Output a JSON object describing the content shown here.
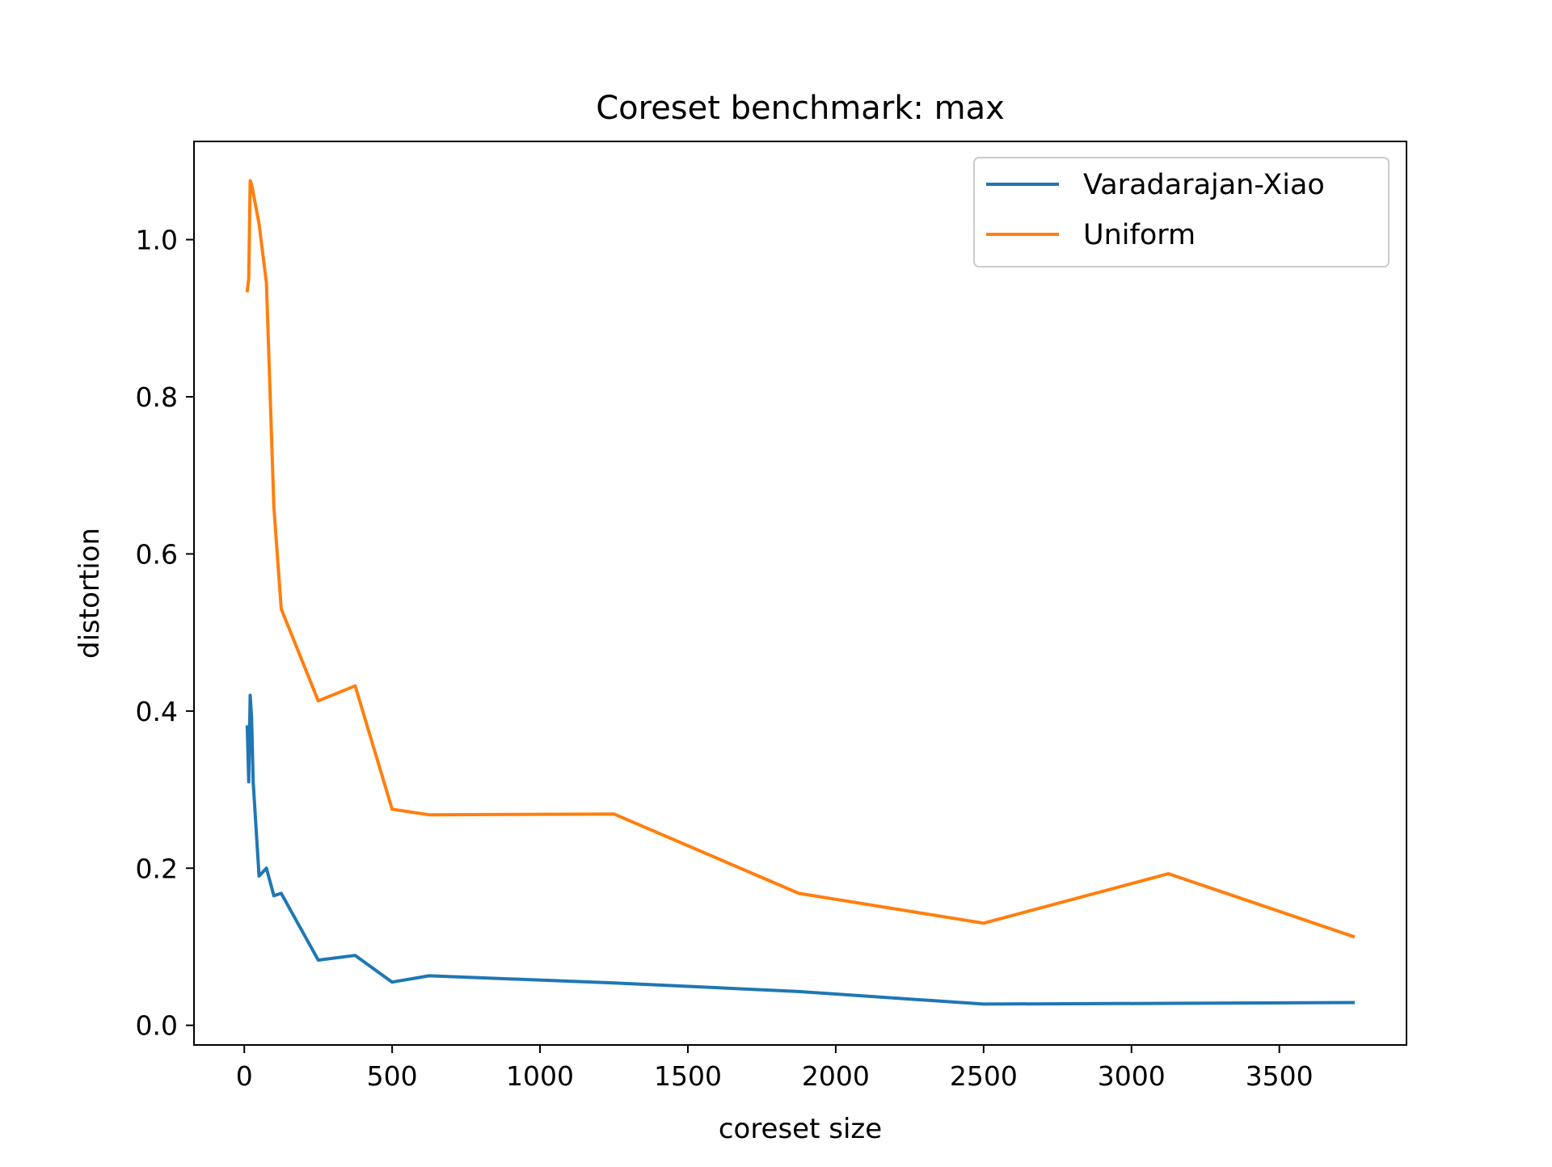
{
  "chart_data": {
    "type": "line",
    "title": "Coreset benchmark: max",
    "xlabel": "coreset size",
    "ylabel": "distortion",
    "xlim": [
      -170,
      3930
    ],
    "ylim": [
      -0.025,
      1.125
    ],
    "xticks": [
      0,
      500,
      1000,
      1500,
      2000,
      2500,
      3000,
      3500
    ],
    "xtick_labels": [
      "0",
      "500",
      "1000",
      "1500",
      "2000",
      "2500",
      "3000",
      "3500"
    ],
    "yticks": [
      0.0,
      0.2,
      0.4,
      0.6,
      0.8,
      1.0
    ],
    "ytick_labels": [
      "0.0",
      "0.2",
      "0.4",
      "0.6",
      "0.8",
      "1.0"
    ],
    "grid": false,
    "legend_position": "top-right",
    "series": [
      {
        "name": "Varadarajan-Xiao",
        "color": "#1f77b4",
        "x": [
          10,
          15,
          20,
          25,
          30,
          50,
          75,
          100,
          125,
          250,
          375,
          500,
          625,
          1250,
          1875,
          2500,
          3125,
          3750
        ],
        "y": [
          0.38,
          0.31,
          0.42,
          0.39,
          0.31,
          0.19,
          0.2,
          0.165,
          0.168,
          0.083,
          0.089,
          0.055,
          0.063,
          0.054,
          0.043,
          0.027,
          0.028,
          0.029
        ]
      },
      {
        "name": "Uniform",
        "color": "#ff7f0e",
        "x": [
          10,
          15,
          20,
          25,
          30,
          50,
          75,
          100,
          125,
          250,
          375,
          500,
          625,
          1250,
          1875,
          2500,
          3125,
          3750
        ],
        "y": [
          0.935,
          0.95,
          1.075,
          1.07,
          1.06,
          1.02,
          0.945,
          0.66,
          0.53,
          0.413,
          0.432,
          0.275,
          0.268,
          0.269,
          0.168,
          0.13,
          0.193,
          0.113
        ]
      }
    ]
  }
}
